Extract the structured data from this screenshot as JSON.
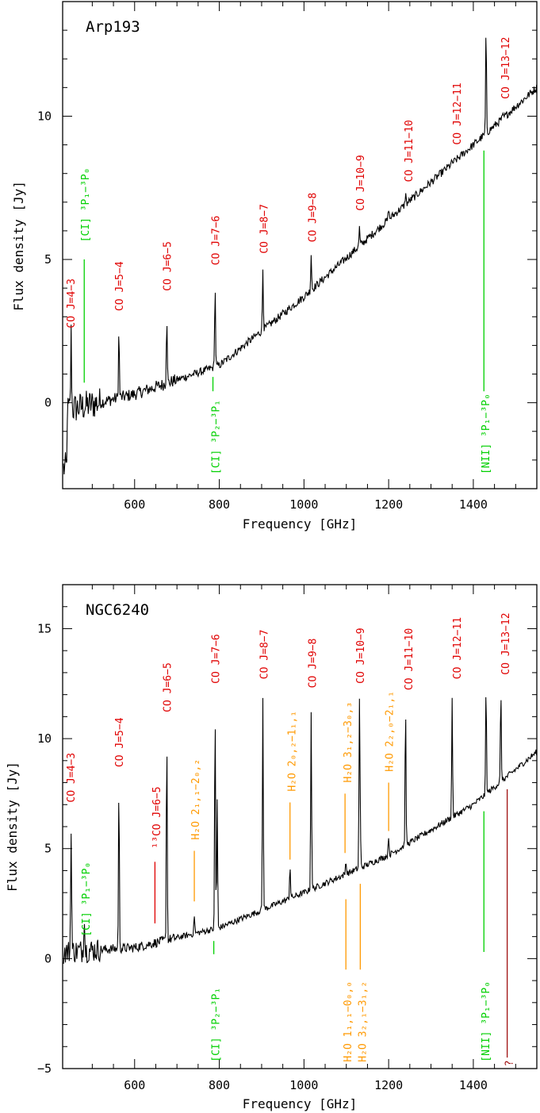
{
  "chart_data": [
    {
      "type": "line",
      "panel_label": "Arp193",
      "xlabel": "Frequency [GHz]",
      "ylabel": "Flux density [Jy]",
      "xlim": [
        430,
        1550
      ],
      "ylim": [
        -3.0,
        14.0
      ],
      "xticks": [
        "600",
        "800",
        "1000",
        "1200",
        "1400"
      ],
      "yticks": [
        "0",
        "5",
        "10"
      ],
      "xtick_values": [
        600,
        800,
        1000,
        1200,
        1400
      ],
      "ytick_values": [
        0,
        5,
        10
      ],
      "continuum": [
        [
          430,
          -0.3
        ],
        [
          600,
          0.3
        ],
        [
          800,
          1.3
        ],
        [
          1000,
          3.7
        ],
        [
          1200,
          6.4
        ],
        [
          1400,
          9.0
        ],
        [
          1550,
          11.0
        ]
      ],
      "peaks": [
        [
          450,
          2.4
        ],
        [
          563,
          2.5
        ],
        [
          676,
          3.1
        ],
        [
          790,
          4.1
        ],
        [
          903,
          4.7
        ],
        [
          1017,
          5.2
        ],
        [
          1131,
          6.1
        ],
        [
          1240,
          7.3
        ],
        [
          1350,
          8.4
        ],
        [
          1430,
          13.0
        ],
        [
          1470,
          10.0
        ],
        [
          1200,
          6.8
        ]
      ],
      "series": [
        {
          "values": []
        }
      ],
      "annotations": [
        {
          "group": "CO",
          "text": "CO J=4−3",
          "x": 458,
          "y": 2.6,
          "line": [],
          "color": "#e00000"
        },
        {
          "group": "CO",
          "text": "CO J=5−4",
          "x": 572,
          "y": 3.2,
          "line": [],
          "color": "#e00000"
        },
        {
          "group": "CO",
          "text": "CO J=6−5",
          "x": 686,
          "y": 3.9,
          "line": [],
          "color": "#e00000"
        },
        {
          "group": "CO",
          "text": "CO J=7−6",
          "x": 800,
          "y": 4.8,
          "line": [],
          "color": "#e00000"
        },
        {
          "group": "CO",
          "text": "CO J=8−7",
          "x": 914,
          "y": 5.2,
          "line": [],
          "color": "#e00000"
        },
        {
          "group": "CO",
          "text": "CO J=9−8",
          "x": 1028,
          "y": 5.6,
          "line": [],
          "color": "#e00000"
        },
        {
          "group": "CO",
          "text": "CO J=10−9",
          "x": 1142,
          "y": 6.7,
          "line": [],
          "color": "#e00000"
        },
        {
          "group": "CO",
          "text": "CO J=11−10",
          "x": 1256,
          "y": 7.7,
          "line": [],
          "color": "#e00000"
        },
        {
          "group": "CO",
          "text": "CO J=12−11",
          "x": 1370,
          "y": 9.0,
          "line": [],
          "color": "#e00000"
        },
        {
          "group": "CO",
          "text": "CO J=13−12",
          "x": 1484,
          "y": 10.6,
          "line": [],
          "color": "#e00000"
        },
        {
          "group": "CI",
          "text": "[CI] ³P₁−³P₀",
          "x": 492,
          "y": 5.6,
          "line": [
            [
              481,
              0.7
            ],
            [
              481,
              5.0
            ]
          ],
          "color": "#00d000"
        },
        {
          "group": "CI",
          "text": "[CI] ³P₂−³P₁",
          "x": 800,
          "y": -2.5,
          "line": [
            [
              785,
              0.4
            ],
            [
              785,
              0.9
            ]
          ],
          "color": "#00d000"
        },
        {
          "group": "NII",
          "text": "[NII] ³P₁−³P₀",
          "x": 1438,
          "y": -2.5,
          "line": [
            [
              1425,
              0.4
            ],
            [
              1425,
              8.8
            ]
          ],
          "color": "#00d000"
        }
      ]
    },
    {
      "type": "line",
      "panel_label": "NGC6240",
      "xlabel": "Frequency [GHz]",
      "ylabel": "Flux density [Jy]",
      "xlim": [
        430,
        1550
      ],
      "ylim": [
        -5.0,
        17.0
      ],
      "xticks": [
        "600",
        "800",
        "1000",
        "1200",
        "1400"
      ],
      "yticks": [
        "−5",
        "0",
        "5",
        "10",
        "15"
      ],
      "xtick_values": [
        600,
        800,
        1000,
        1200,
        1400
      ],
      "ytick_values": [
        -5,
        0,
        5,
        10,
        15
      ],
      "continuum": [
        [
          430,
          0.3
        ],
        [
          600,
          0.5
        ],
        [
          800,
          1.4
        ],
        [
          1000,
          3.0
        ],
        [
          1200,
          4.7
        ],
        [
          1400,
          7.0
        ],
        [
          1550,
          9.4
        ]
      ],
      "peaks": [
        [
          450,
          6.2
        ],
        [
          481,
          2.2
        ],
        [
          563,
          7.8
        ],
        [
          676,
          10.3
        ],
        [
          790,
          11.5
        ],
        [
          795,
          7.2
        ],
        [
          903,
          11.8
        ],
        [
          1017,
          11.3
        ],
        [
          1131,
          11.6
        ],
        [
          1240,
          11.4
        ],
        [
          1350,
          11.8
        ],
        [
          1430,
          12.4
        ],
        [
          1465,
          12.1
        ],
        [
          967,
          4.3
        ],
        [
          1099,
          4.5
        ],
        [
          1133,
          5.8
        ],
        [
          1200,
          5.6
        ],
        [
          741,
          2.0
        ]
      ],
      "series": [
        {
          "values": []
        }
      ],
      "annotations": [
        {
          "group": "CO",
          "text": "CO J=4−3",
          "x": 458,
          "y": 7.1,
          "line": [],
          "color": "#e00000"
        },
        {
          "group": "CO",
          "text": "CO J=5−4",
          "x": 572,
          "y": 8.7,
          "line": [],
          "color": "#e00000"
        },
        {
          "group": "CO",
          "text": "CO J=6−5",
          "x": 686,
          "y": 11.2,
          "line": [],
          "color": "#e00000"
        },
        {
          "group": "CO",
          "text": "CO J=7−6",
          "x": 800,
          "y": 12.5,
          "line": [],
          "color": "#e00000"
        },
        {
          "group": "CO",
          "text": "CO J=8−7",
          "x": 914,
          "y": 12.7,
          "line": [],
          "color": "#e00000"
        },
        {
          "group": "CO",
          "text": "CO J=9−8",
          "x": 1028,
          "y": 12.3,
          "line": [],
          "color": "#e00000"
        },
        {
          "group": "CO",
          "text": "CO J=10−9",
          "x": 1142,
          "y": 12.5,
          "line": [],
          "color": "#e00000"
        },
        {
          "group": "CO",
          "text": "CO J=11−10",
          "x": 1256,
          "y": 12.2,
          "line": [],
          "color": "#e00000"
        },
        {
          "group": "CO",
          "text": "CO J=12−11",
          "x": 1370,
          "y": 12.7,
          "line": [],
          "color": "#e00000"
        },
        {
          "group": "CO",
          "text": "CO J=13−12",
          "x": 1484,
          "y": 12.9,
          "line": [],
          "color": "#e00000"
        },
        {
          "group": "13CO",
          "text": "¹³CO J=6−5",
          "x": 660,
          "y": 5.0,
          "line": [
            [
              648,
              1.6
            ],
            [
              648,
              4.4
            ]
          ],
          "color": "#e00000"
        },
        {
          "group": "H2O",
          "text": "H₂O 2₁,₁−2₀,₂",
          "x": 752,
          "y": 5.4,
          "line": [
            [
              741,
              2.6
            ],
            [
              741,
              4.9
            ]
          ],
          "color": "#ff9900"
        },
        {
          "group": "H2O",
          "text": "H₂O 2₀,₂−1₁,₁",
          "x": 980,
          "y": 7.6,
          "line": [
            [
              967,
              4.5
            ],
            [
              967,
              7.1
            ]
          ],
          "color": "#ff9900"
        },
        {
          "group": "H2O",
          "text": "H₂O 3₁,₂−3₀,₃",
          "x": 1112,
          "y": 8.0,
          "line": [
            [
              1097,
              4.8
            ],
            [
              1097,
              7.5
            ]
          ],
          "color": "#ff9900"
        },
        {
          "group": "H2O",
          "text": "H₂O 2₂,₀−2₁,₁",
          "x": 1210,
          "y": 8.5,
          "line": [
            [
              1200,
              5.8
            ],
            [
              1200,
              8.0
            ]
          ],
          "color": "#ff9900"
        },
        {
          "group": "H2O",
          "text": "H₂O 1₁,₁−0₀,₀",
          "x": 1112,
          "y": -4.7,
          "line": [
            [
              1099,
              2.7
            ],
            [
              1099,
              -0.5
            ]
          ],
          "color": "#ff9900"
        },
        {
          "group": "H2O",
          "text": "H₂O 3₂,₁−3₁,₂",
          "x": 1146,
          "y": -4.7,
          "line": [
            [
              1133,
              3.4
            ],
            [
              1133,
              -0.5
            ]
          ],
          "color": "#ff9900"
        },
        {
          "group": "CI",
          "text": "[CI] ³P₁−³P₀",
          "x": 494,
          "y": 1.0,
          "line": [],
          "color": "#00d000"
        },
        {
          "group": "CI",
          "text": "[CI] ³P₂−³P₁",
          "x": 800,
          "y": -4.7,
          "line": [
            [
              787,
              0.2
            ],
            [
              787,
              0.8
            ]
          ],
          "color": "#00d000"
        },
        {
          "group": "NII",
          "text": "[NII] ³P₁−³P₀",
          "x": 1438,
          "y": -4.7,
          "line": [
            [
              1425,
              0.3
            ],
            [
              1425,
              6.7
            ]
          ],
          "color": "#00d000"
        },
        {
          "group": "unknown",
          "text": "?",
          "x": 1493,
          "y": -4.9,
          "line": [
            [
              1480,
              7.7
            ],
            [
              1480,
              -4.5
            ]
          ],
          "color": "#a01010"
        }
      ]
    }
  ]
}
